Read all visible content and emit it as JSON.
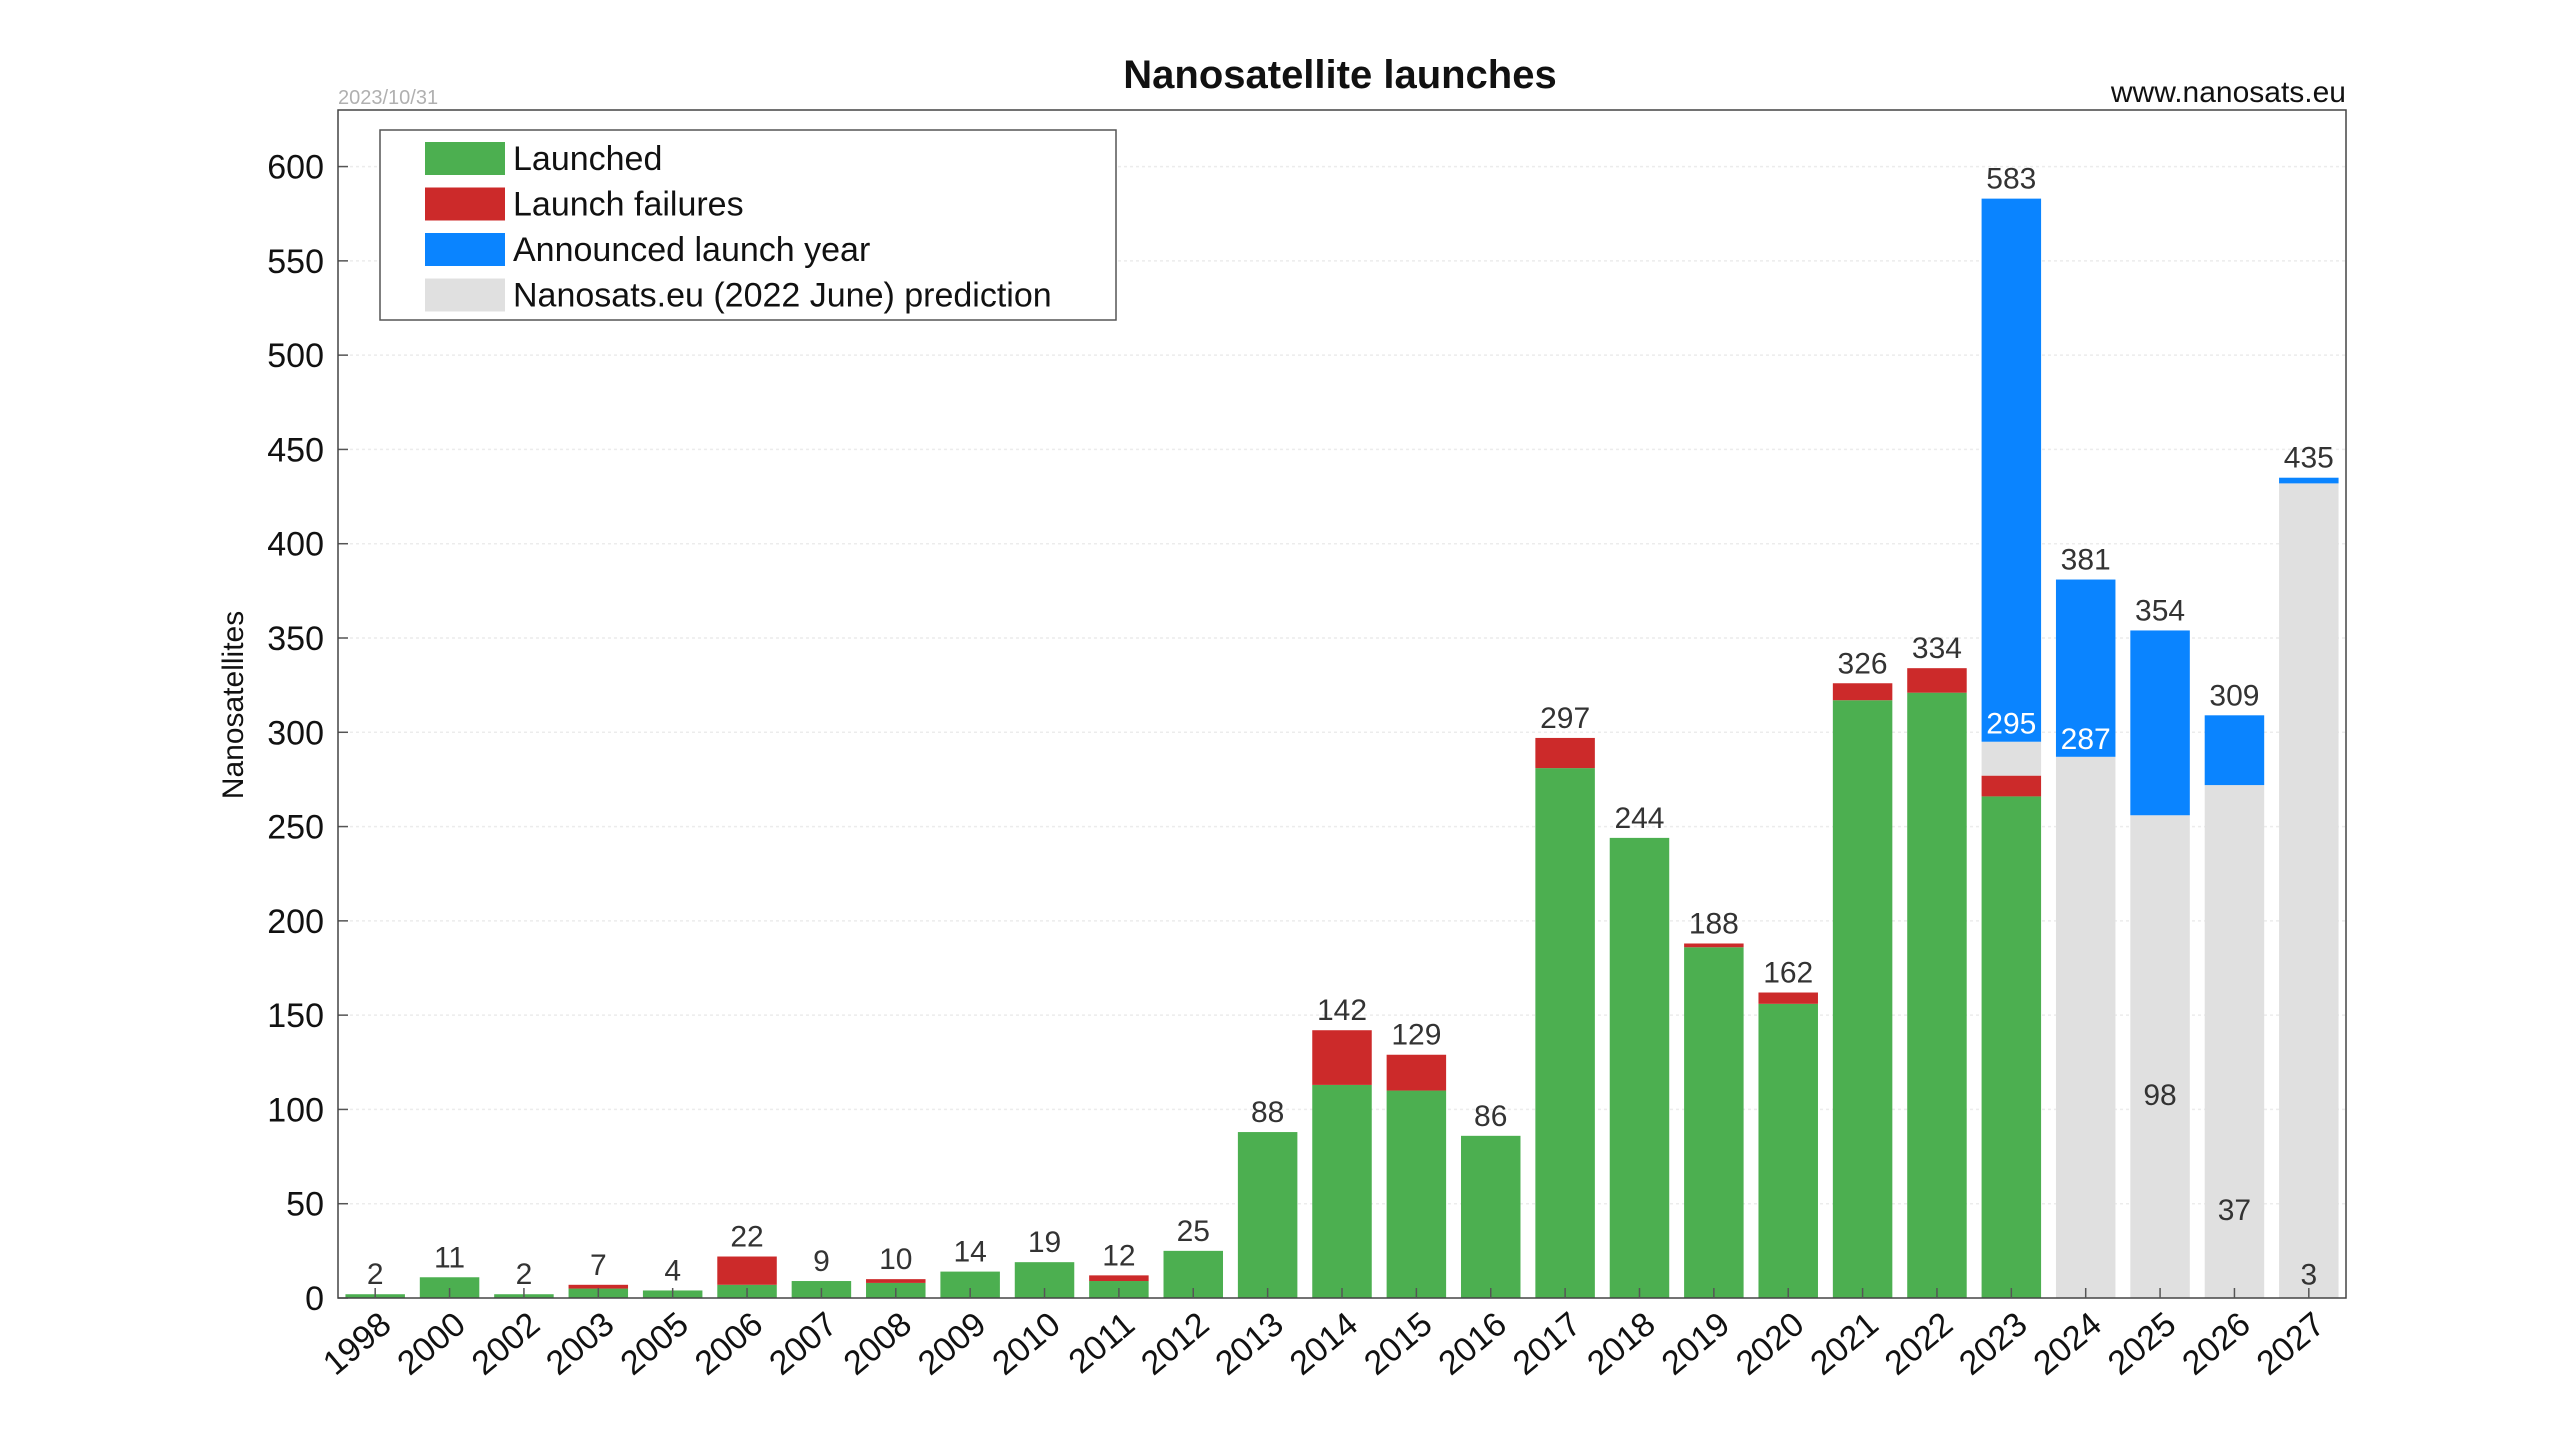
{
  "date_stamp": "2023/10/31",
  "source": "www.nanosats.eu",
  "chart_data": {
    "type": "bar",
    "stacked": true,
    "title": "Nanosatellite launches",
    "ylabel": "Nanosatellites",
    "xlabel": "",
    "ylim": [
      0,
      630
    ],
    "yticks": [
      0,
      50,
      100,
      150,
      200,
      250,
      300,
      350,
      400,
      450,
      500,
      550,
      600
    ],
    "grid": true,
    "legend_position": "top-left",
    "categories": [
      "1998",
      "2000",
      "2002",
      "2003",
      "2005",
      "2006",
      "2007",
      "2008",
      "2009",
      "2010",
      "2011",
      "2012",
      "2013",
      "2014",
      "2015",
      "2016",
      "2017",
      "2018",
      "2019",
      "2020",
      "2021",
      "2022",
      "2023",
      "2024",
      "2025",
      "2026",
      "2027"
    ],
    "series": [
      {
        "name": "Launched",
        "color": "#4caf50",
        "values": [
          2,
          11,
          2,
          5,
          4,
          7,
          9,
          8,
          14,
          19,
          9,
          25,
          88,
          113,
          110,
          86,
          281,
          244,
          186,
          156,
          317,
          321,
          266,
          0,
          0,
          0,
          0
        ]
      },
      {
        "name": "Launch failures",
        "color": "#cc2a2a",
        "values": [
          0,
          0,
          0,
          2,
          0,
          15,
          0,
          2,
          0,
          0,
          3,
          0,
          0,
          29,
          19,
          0,
          16,
          0,
          2,
          6,
          9,
          13,
          11,
          0,
          0,
          0,
          0
        ]
      },
      {
        "name": "Nanosats.eu (2022 June) prediction",
        "color": "#e0e0e0",
        "values": [
          0,
          0,
          0,
          0,
          0,
          0,
          0,
          0,
          0,
          0,
          0,
          0,
          0,
          0,
          0,
          0,
          0,
          0,
          0,
          0,
          0,
          0,
          18,
          287,
          256,
          272,
          432
        ]
      },
      {
        "name": "Announced launch year",
        "color": "#0a84ff",
        "values": [
          0,
          0,
          0,
          0,
          0,
          0,
          0,
          0,
          0,
          0,
          0,
          0,
          0,
          0,
          0,
          0,
          0,
          0,
          0,
          0,
          0,
          0,
          288,
          94,
          98,
          37,
          3
        ]
      }
    ],
    "legend_order": [
      "Launched",
      "Launch failures",
      "Announced launch year",
      "Nanosats.eu (2022 June) prediction"
    ],
    "top_labels": [
      2,
      11,
      2,
      7,
      4,
      22,
      9,
      10,
      14,
      19,
      12,
      25,
      88,
      142,
      129,
      86,
      297,
      244,
      188,
      162,
      326,
      334,
      583,
      381,
      354,
      309,
      435
    ],
    "inner_labels": [
      {
        "category": "2023",
        "value": 295
      },
      {
        "category": "2024",
        "value": 287
      },
      {
        "category": "2025",
        "value": 98
      },
      {
        "category": "2026",
        "value": 37
      },
      {
        "category": "2027",
        "value": 3
      }
    ]
  }
}
